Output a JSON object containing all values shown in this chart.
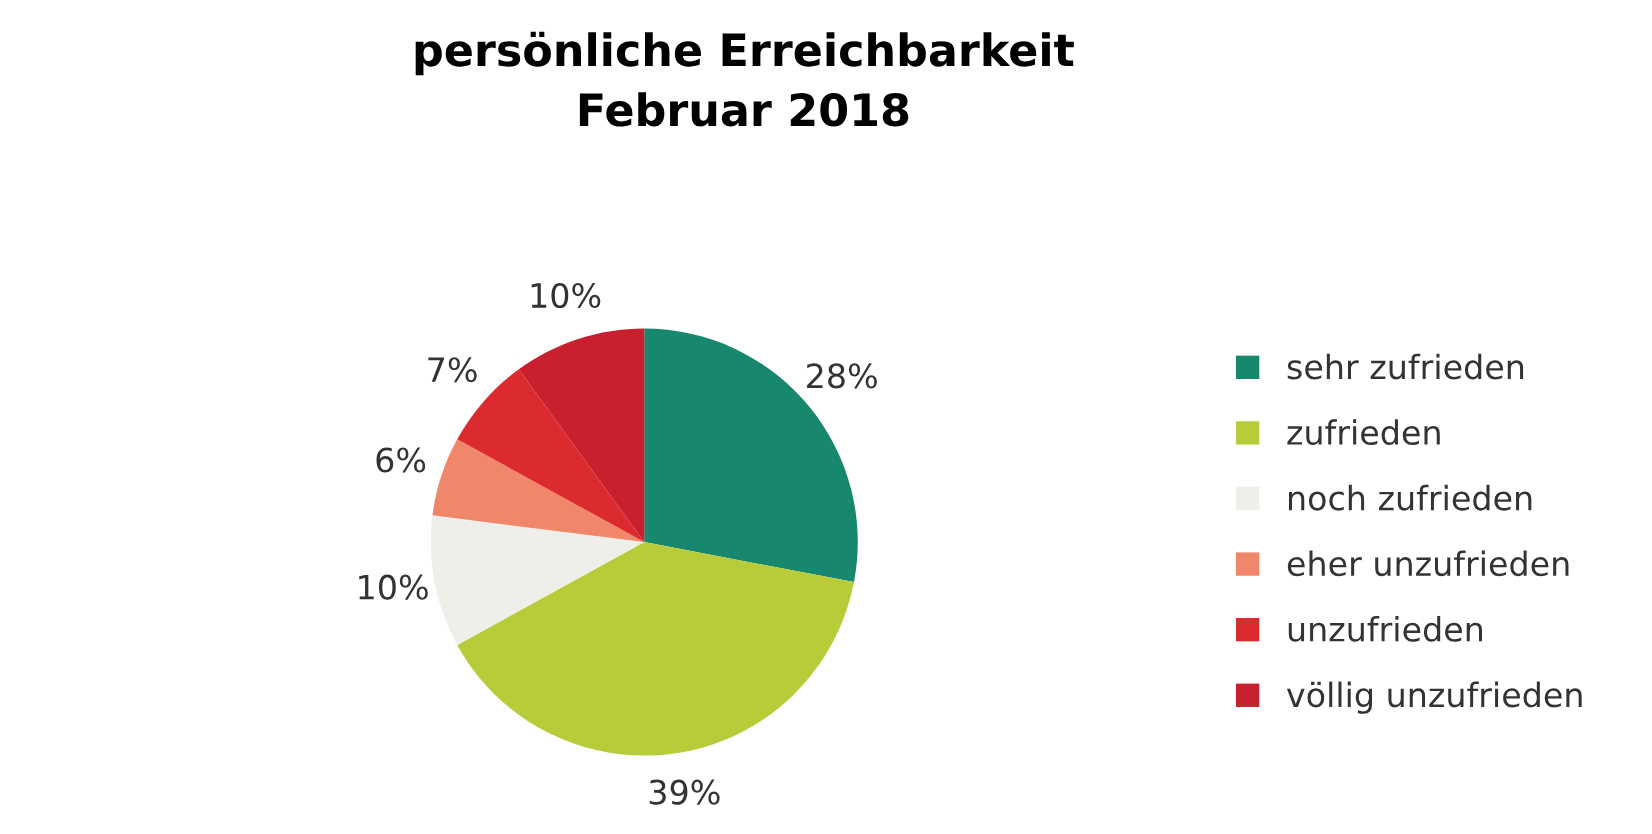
{
  "chart_data": {
    "type": "pie",
    "title": "persönliche Erreichbarkeit\nFebruar 2018",
    "categories": [
      "sehr zufrieden",
      "zufrieden",
      "noch zufrieden",
      "eher unzufrieden",
      "unzufrieden",
      "völlig unzufrieden"
    ],
    "values": [
      28,
      39,
      10,
      6,
      7,
      10
    ],
    "value_labels": [
      "28%",
      "39%",
      "10%",
      "6%",
      "7%",
      "10%"
    ],
    "colors": [
      "#17876e",
      "#b8cc3a",
      "#efefea",
      "#f0866a",
      "#dc2b2e",
      "#c8202e"
    ],
    "legend": "right"
  }
}
